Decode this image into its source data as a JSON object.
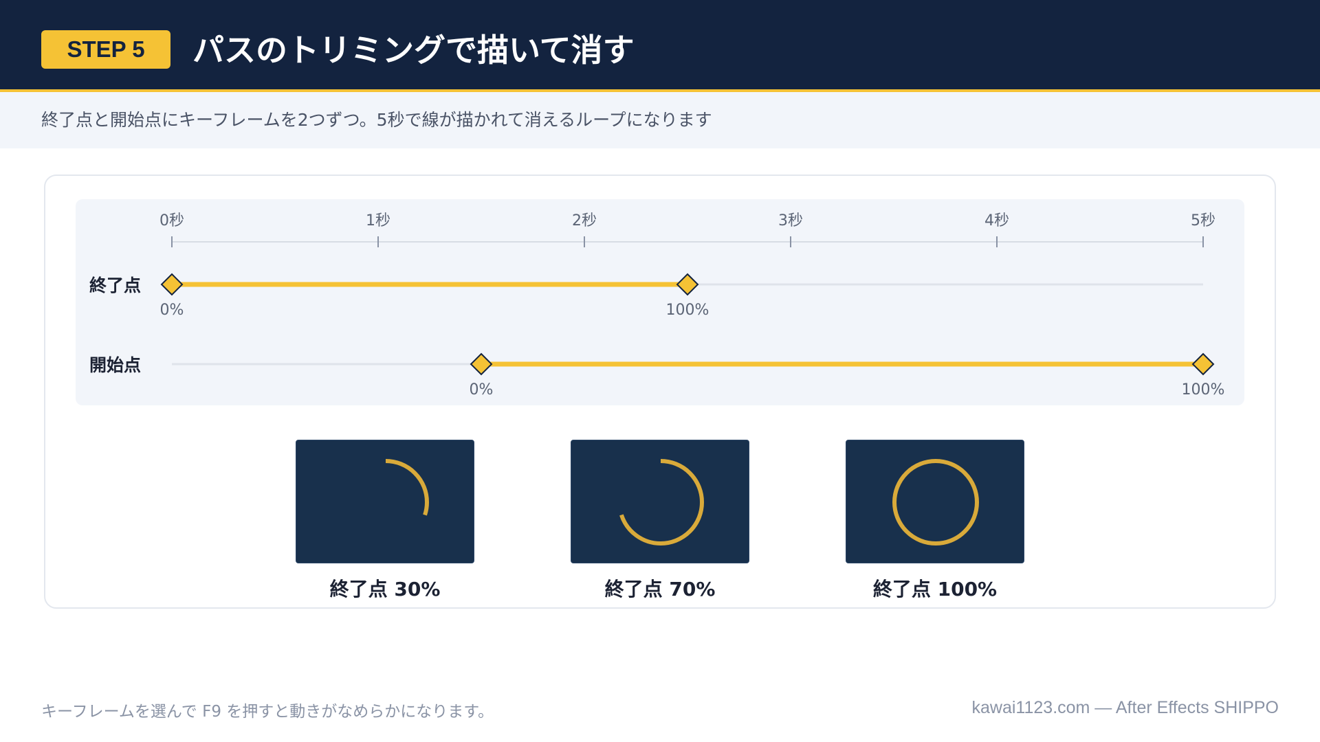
{
  "header": {
    "step_label": "STEP 5",
    "title": "パスのトリミングで描いて消す"
  },
  "subtitle": "終了点と開始点にキーフレームを2つずつ。5秒で線が描かれて消えるループになります",
  "timeline": {
    "time_ticks": [
      "0秒",
      "1秒",
      "2秒",
      "3秒",
      "4秒",
      "5秒"
    ],
    "tracks": [
      {
        "name": "終了点",
        "keyframes": [
          {
            "time": 0,
            "value_label": "0%"
          },
          {
            "time": 2.5,
            "value_label": "100%"
          }
        ]
      },
      {
        "name": "開始点",
        "keyframes": [
          {
            "time": 1.5,
            "value_label": "0%"
          },
          {
            "time": 5,
            "value_label": "100%"
          }
        ]
      }
    ]
  },
  "previews": [
    {
      "label": "終了点 30%",
      "progress": 0.3
    },
    {
      "label": "終了点 70%",
      "progress": 0.7
    },
    {
      "label": "終了点 100%",
      "progress": 1.0
    }
  ],
  "footer": {
    "note": "キーフレームを選んで F9 を押すと動きがなめらかになります。",
    "credit": "kawai1123.com — After Effects SHIPPO"
  },
  "colors": {
    "navy": "#13233f",
    "accent": "#f5c235",
    "stroke": "#d9aa3a"
  }
}
